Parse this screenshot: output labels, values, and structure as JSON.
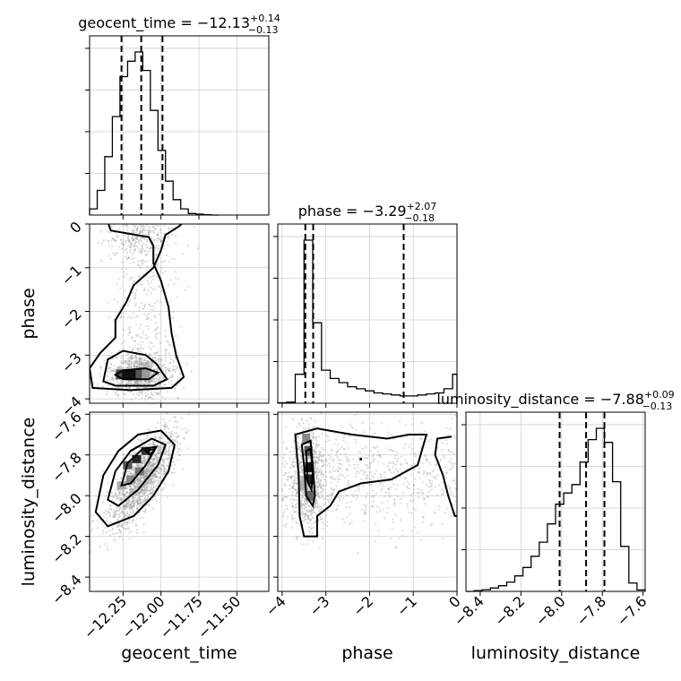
{
  "chart_data": {
    "type": "corner",
    "parameters": [
      "geocent_time",
      "phase",
      "luminosity_distance"
    ],
    "axis_labels": {
      "x": [
        "geocent_time",
        "phase",
        "luminosity_distance"
      ],
      "y": [
        "phase",
        "luminosity_distance"
      ]
    },
    "ranges": {
      "geocent_time": [
        -12.47,
        -11.29
      ],
      "phase": [
        -4.1,
        0.0
      ],
      "luminosity_distance": [
        -8.47,
        -7.59
      ]
    },
    "ticks": {
      "geocent_time": [
        -12.25,
        -12.0,
        -11.75,
        -11.5
      ],
      "phase": [
        -4,
        -3,
        -2,
        -1,
        0
      ],
      "luminosity_distance": [
        -8.4,
        -8.2,
        -8.0,
        -7.8,
        -7.6
      ]
    },
    "tick_labels": {
      "geocent_time": [
        "−12.25",
        "−12.00",
        "−11.75",
        "−11.50"
      ],
      "phase": [
        "−4",
        "−3",
        "−2",
        "−1",
        "0"
      ],
      "luminosity_distance": [
        "−8.4",
        "−8.2",
        "−8.0",
        "−7.8",
        "−7.6"
      ]
    },
    "titles": [
      {
        "param": "geocent_time",
        "prefix": "geocent_time = −12.13",
        "plus": "+0.14",
        "minus": "−0.13"
      },
      {
        "param": "phase",
        "prefix": "phase = −3.29",
        "plus": "+2.07",
        "minus": "−0.18"
      },
      {
        "param": "luminosity_distance",
        "prefix": "luminosity_distance = −7.88",
        "plus": "+0.09",
        "minus": "−0.13"
      }
    ],
    "quantiles": {
      "geocent_time": [
        -12.26,
        -12.13,
        -11.99
      ],
      "phase": [
        -3.47,
        -3.29,
        -1.22
      ],
      "luminosity_distance": [
        -8.01,
        -7.88,
        -7.79
      ]
    },
    "histograms": {
      "geocent_time": {
        "edges": [
          -12.47,
          -12.42,
          -12.37,
          -12.32,
          -12.27,
          -12.22,
          -12.17,
          -12.12,
          -12.07,
          -12.02,
          -11.97,
          -11.92,
          -11.87,
          -11.82,
          -11.77,
          -11.72,
          -11.67,
          -11.62
        ],
        "counts": [
          2,
          8,
          19,
          32,
          45,
          50,
          53,
          47,
          34,
          21,
          11,
          5,
          2,
          0.5,
          0.3,
          0.1,
          0
        ]
      },
      "phase": {
        "edges": [
          -4.1,
          -3.9,
          -3.7,
          -3.5,
          -3.3,
          -3.1,
          -2.9,
          -2.7,
          -2.5,
          -2.3,
          -2.1,
          -1.9,
          -1.7,
          -1.5,
          -1.3,
          -1.1,
          -0.9,
          -0.7,
          -0.5,
          -0.3,
          -0.1,
          0.0
        ],
        "counts": [
          0.2,
          0.5,
          14,
          79,
          39,
          16,
          12,
          10,
          8,
          7,
          6,
          5,
          4.5,
          4,
          3.5,
          3.5,
          4,
          4.5,
          5,
          7,
          14
        ]
      },
      "luminosity_distance": {
        "edges": [
          -8.47,
          -8.43,
          -8.39,
          -8.35,
          -8.31,
          -8.27,
          -8.23,
          -8.19,
          -8.15,
          -8.11,
          -8.07,
          -8.03,
          -7.99,
          -7.95,
          -7.91,
          -7.87,
          -7.83,
          -7.79,
          -7.75,
          -7.71,
          -7.67,
          -7.63,
          -7.59
        ],
        "counts": [
          0,
          0.3,
          0.6,
          1.2,
          2,
          3.3,
          5.5,
          8.5,
          12.5,
          17.5,
          24,
          31,
          35,
          38,
          46,
          54,
          58,
          53,
          39,
          16,
          3,
          0.5
        ]
      }
    },
    "grid": true
  }
}
